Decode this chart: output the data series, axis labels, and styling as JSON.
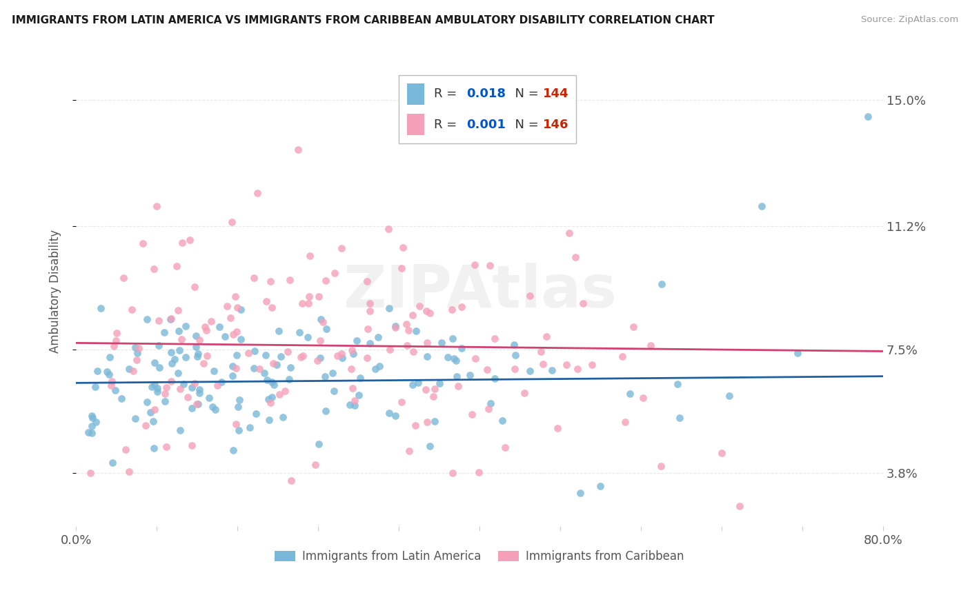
{
  "title": "IMMIGRANTS FROM LATIN AMERICA VS IMMIGRANTS FROM CARIBBEAN AMBULATORY DISABILITY CORRELATION CHART",
  "source": "Source: ZipAtlas.com",
  "ylabel": "Ambulatory Disability",
  "yticks": [
    0.038,
    0.075,
    0.112,
    0.15
  ],
  "ytick_labels": [
    "3.8%",
    "7.5%",
    "11.2%",
    "15.0%"
  ],
  "xlim": [
    0.0,
    0.8
  ],
  "ylim": [
    0.022,
    0.163
  ],
  "legend_blue_r": "0.018",
  "legend_blue_n": "144",
  "legend_pink_r": "0.001",
  "legend_pink_n": "146",
  "blue_color": "#7ab8d9",
  "pink_color": "#f5a0b8",
  "blue_line_color": "#2060a0",
  "pink_line_color": "#d04070",
  "legend_val_color": "#0055cc",
  "legend_n_val_color": "#cc2200",
  "text_color": "#555555",
  "background_color": "#ffffff",
  "grid_color": "#e8e8e8",
  "watermark_color": "#e8e8e8",
  "blue_trend_y0": 0.065,
  "blue_trend_y1": 0.067,
  "pink_trend_y0": 0.077,
  "pink_trend_y1": 0.0745
}
